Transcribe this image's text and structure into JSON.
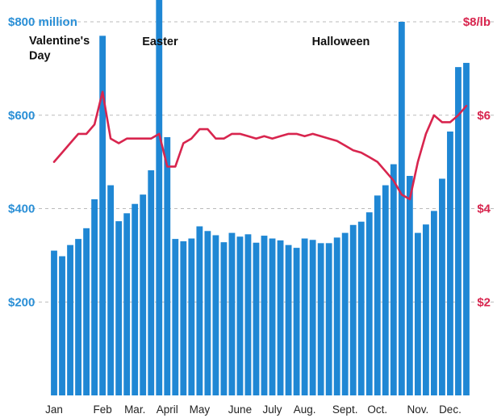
{
  "chart_data": {
    "type": "bar+line",
    "colors": {
      "bars": "#1f87d4",
      "line": "#d8254e",
      "left_axis": "#2a8fd6",
      "right_axis": "#d8254e",
      "grid": "#bbbbbb"
    },
    "left_axis": {
      "range": [
        0,
        800
      ],
      "ticks": [
        {
          "value": 800,
          "label": "$800 million"
        },
        {
          "value": 600,
          "label": "$600"
        },
        {
          "value": 400,
          "label": "$400"
        },
        {
          "value": 200,
          "label": "$200"
        }
      ]
    },
    "right_axis": {
      "range": [
        0,
        8
      ],
      "ticks": [
        {
          "value": 8,
          "label": "$8/lb"
        },
        {
          "value": 6,
          "label": "$6"
        },
        {
          "value": 4,
          "label": "$4"
        },
        {
          "value": 2,
          "label": "$2"
        }
      ]
    },
    "x_labels": [
      {
        "label": "Jan",
        "week": 1
      },
      {
        "label": "Feb",
        "week": 7
      },
      {
        "label": "Mar.",
        "week": 11
      },
      {
        "label": "April",
        "week": 15
      },
      {
        "label": "May",
        "week": 19
      },
      {
        "label": "June",
        "week": 24
      },
      {
        "label": "July",
        "week": 28
      },
      {
        "label": "Aug.",
        "week": 32
      },
      {
        "label": "Sept.",
        "week": 37
      },
      {
        "label": "Oct.",
        "week": 41
      },
      {
        "label": "Nov.",
        "week": 46
      },
      {
        "label": "Dec.",
        "week": 50
      }
    ],
    "annotations": [
      {
        "text": "Valentine's",
        "week": 1,
        "value": 752
      },
      {
        "text": "Day",
        "week": 1,
        "value": 720
      },
      {
        "text": "Easter",
        "week": 15,
        "value": 750
      },
      {
        "text": "Halloween",
        "week": 36,
        "value": 750
      }
    ],
    "weekly_sales_millions": [
      310,
      298,
      322,
      335,
      358,
      420,
      770,
      450,
      373,
      390,
      410,
      430,
      482,
      860,
      553,
      335,
      330,
      336,
      362,
      352,
      343,
      328,
      348,
      340,
      345,
      327,
      342,
      336,
      332,
      322,
      316,
      336,
      333,
      326,
      326,
      338,
      348,
      365,
      372,
      392,
      428,
      450,
      495,
      800,
      470,
      348,
      366,
      395,
      464,
      565,
      703,
      712
    ],
    "price_per_lb": [
      5.0,
      5.2,
      5.4,
      5.6,
      5.6,
      5.8,
      6.5,
      5.5,
      5.4,
      5.5,
      5.5,
      5.5,
      5.5,
      5.6,
      4.9,
      4.9,
      5.4,
      5.5,
      5.7,
      5.7,
      5.5,
      5.5,
      5.6,
      5.6,
      5.55,
      5.5,
      5.55,
      5.5,
      5.55,
      5.6,
      5.6,
      5.55,
      5.6,
      5.55,
      5.5,
      5.45,
      5.35,
      5.25,
      5.2,
      5.1,
      5.0,
      4.8,
      4.6,
      4.3,
      4.2,
      5.0,
      5.6,
      6.0,
      5.85,
      5.85,
      6.0,
      6.2
    ]
  }
}
